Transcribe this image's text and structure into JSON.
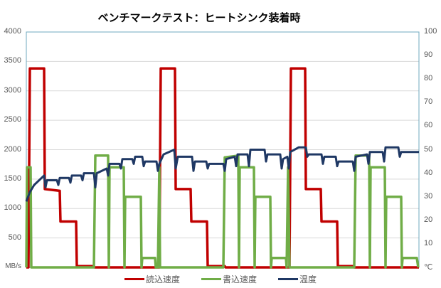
{
  "title": "ベンチマークテスト：ヒートシンク装着時",
  "left_axis": {
    "ticks": [
      "4000",
      "3500",
      "3000",
      "2500",
      "2000",
      "1500",
      "1000",
      "500"
    ],
    "unit": "MB/s"
  },
  "right_axis": {
    "ticks": [
      "100",
      "90",
      "80",
      "70",
      "60",
      "50",
      "40",
      "30",
      "20",
      "10"
    ],
    "unit": "℃"
  },
  "legend": [
    {
      "label": "読込速度",
      "color": "#C00000"
    },
    {
      "label": "書込速度",
      "color": "#70AD47"
    },
    {
      "label": "温度",
      "color": "#1F3864"
    }
  ],
  "chart_data": {
    "type": "line",
    "title": "ベンチマークテスト：ヒートシンク装着時",
    "xlabel": "",
    "ylabel": "MB/s",
    "y2label": "℃",
    "ylim": [
      0,
      4000
    ],
    "y2lim": [
      0,
      100
    ],
    "grid": true,
    "legend_position": "bottom",
    "series": [
      {
        "name": "読込速度",
        "axis": "left",
        "color": "#C00000",
        "points": [
          [
            37,
            0
          ],
          [
            40,
            0
          ],
          [
            42,
            3380
          ],
          [
            62,
            3380
          ],
          [
            63,
            1330
          ],
          [
            84,
            1300
          ],
          [
            85,
            780
          ],
          [
            107,
            780
          ],
          [
            108,
            20
          ],
          [
            132,
            20
          ],
          [
            133,
            0
          ],
          [
            224,
            0
          ],
          [
            226,
            3380
          ],
          [
            246,
            3380
          ],
          [
            247,
            1330
          ],
          [
            268,
            1330
          ],
          [
            269,
            780
          ],
          [
            291,
            780
          ],
          [
            292,
            20
          ],
          [
            316,
            20
          ],
          [
            317,
            0
          ],
          [
            407,
            0
          ],
          [
            409,
            3380
          ],
          [
            429,
            3380
          ],
          [
            430,
            1330
          ],
          [
            451,
            1330
          ],
          [
            452,
            780
          ],
          [
            474,
            780
          ],
          [
            475,
            20
          ],
          [
            497,
            20
          ],
          [
            498,
            0
          ],
          [
            589,
            0
          ]
        ]
      },
      {
        "name": "書込速度",
        "axis": "left",
        "color": "#70AD47",
        "points": [
          [
            37,
            0
          ],
          [
            38,
            1700
          ],
          [
            43,
            1700
          ],
          [
            44,
            0
          ],
          [
            132,
            0
          ],
          [
            134,
            1900
          ],
          [
            152,
            1900
          ],
          [
            153,
            0
          ],
          [
            154,
            1700
          ],
          [
            174,
            1700
          ],
          [
            175,
            0
          ],
          [
            176,
            1200
          ],
          [
            198,
            1200
          ],
          [
            199,
            0
          ],
          [
            200,
            160
          ],
          [
            218,
            160
          ],
          [
            219,
            0
          ],
          [
            222,
            0
          ],
          [
            224,
            1700
          ],
          [
            225,
            0
          ],
          [
            314,
            0
          ],
          [
            316,
            1870
          ],
          [
            335,
            1900
          ],
          [
            336,
            0
          ],
          [
            337,
            1700
          ],
          [
            357,
            1700
          ],
          [
            358,
            0
          ],
          [
            359,
            1200
          ],
          [
            380,
            1200
          ],
          [
            381,
            0
          ],
          [
            382,
            160
          ],
          [
            402,
            160
          ],
          [
            403,
            0
          ],
          [
            405,
            1700
          ],
          [
            407,
            0
          ],
          [
            498,
            0
          ],
          [
            500,
            1900
          ],
          [
            519,
            1900
          ],
          [
            520,
            0
          ],
          [
            521,
            1700
          ],
          [
            541,
            1700
          ],
          [
            542,
            0
          ],
          [
            543,
            1200
          ],
          [
            564,
            1200
          ],
          [
            565,
            0
          ],
          [
            566,
            160
          ],
          [
            586,
            160
          ],
          [
            588,
            0
          ]
        ]
      },
      {
        "name": "温度",
        "axis": "right",
        "color": "#1F3864",
        "points": [
          [
            37,
            28
          ],
          [
            42,
            32
          ],
          [
            48,
            35
          ],
          [
            55,
            37
          ],
          [
            62,
            39
          ],
          [
            64,
            34
          ],
          [
            66,
            37
          ],
          [
            80,
            37
          ],
          [
            82,
            35
          ],
          [
            84,
            38
          ],
          [
            97,
            38
          ],
          [
            99,
            36
          ],
          [
            101,
            39
          ],
          [
            114,
            39
          ],
          [
            116,
            37
          ],
          [
            118,
            40
          ],
          [
            132,
            40
          ],
          [
            134,
            34
          ],
          [
            136,
            40
          ],
          [
            150,
            42
          ],
          [
            152,
            39
          ],
          [
            154,
            44
          ],
          [
            168,
            44
          ],
          [
            170,
            42
          ],
          [
            172,
            46
          ],
          [
            186,
            46
          ],
          [
            188,
            44
          ],
          [
            190,
            47
          ],
          [
            200,
            47
          ],
          [
            202,
            43
          ],
          [
            204,
            45
          ],
          [
            220,
            45
          ],
          [
            222,
            41
          ],
          [
            224,
            44
          ],
          [
            230,
            48
          ],
          [
            245,
            50
          ],
          [
            247,
            42
          ],
          [
            250,
            47
          ],
          [
            270,
            47
          ],
          [
            272,
            41
          ],
          [
            274,
            45
          ],
          [
            290,
            45
          ],
          [
            292,
            42
          ],
          [
            294,
            44
          ],
          [
            314,
            44
          ],
          [
            316,
            41
          ],
          [
            318,
            46
          ],
          [
            330,
            47
          ],
          [
            332,
            43
          ],
          [
            334,
            48
          ],
          [
            348,
            48
          ],
          [
            350,
            43
          ],
          [
            352,
            50
          ],
          [
            372,
            50
          ],
          [
            374,
            45
          ],
          [
            376,
            48
          ],
          [
            394,
            48
          ],
          [
            396,
            42
          ],
          [
            398,
            46
          ],
          [
            404,
            47
          ],
          [
            406,
            42
          ],
          [
            408,
            49
          ],
          [
            420,
            51
          ],
          [
            430,
            51
          ],
          [
            432,
            47
          ],
          [
            434,
            48
          ],
          [
            452,
            48
          ],
          [
            454,
            44
          ],
          [
            456,
            47
          ],
          [
            472,
            47
          ],
          [
            474,
            43
          ],
          [
            476,
            45
          ],
          [
            496,
            45
          ],
          [
            498,
            41
          ],
          [
            500,
            47
          ],
          [
            516,
            48
          ],
          [
            518,
            44
          ],
          [
            520,
            49
          ],
          [
            538,
            49
          ],
          [
            540,
            45
          ],
          [
            542,
            51
          ],
          [
            560,
            51
          ],
          [
            562,
            47
          ],
          [
            564,
            49
          ],
          [
            589,
            49
          ]
        ]
      }
    ]
  }
}
